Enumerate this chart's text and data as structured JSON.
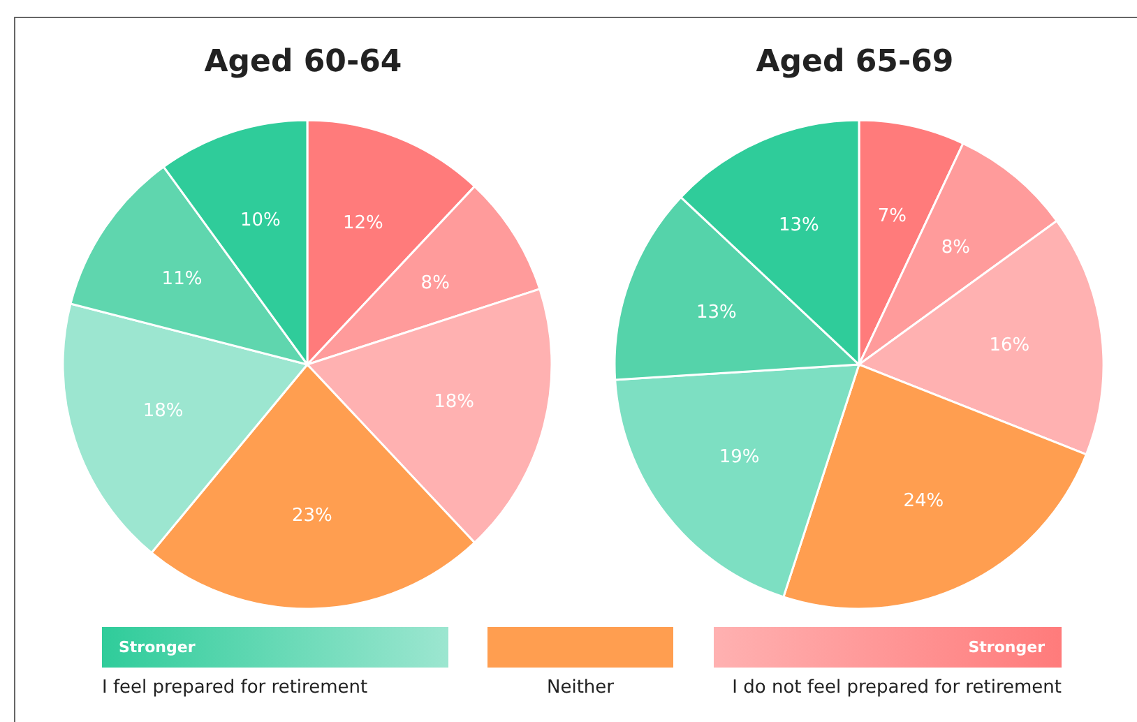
{
  "chart_data": [
    {
      "type": "pie",
      "title": "Aged 60-64",
      "categories": [
        null,
        null,
        null,
        null,
        null,
        null,
        null
      ],
      "values": [
        12,
        8,
        18,
        23,
        18,
        11,
        10
      ],
      "value_labels": [
        "12%",
        "8%",
        "18%",
        "23%",
        "18%",
        "11%",
        "10%"
      ],
      "colors": [
        "#ff7b7b",
        "#ff9b9b",
        "#ffb1b1",
        "#ff9e50",
        "#9ce6d0",
        "#5fd6ae",
        "#2fcc9a"
      ]
    },
    {
      "type": "pie",
      "title": "Aged 65-69",
      "categories": [
        null,
        null,
        null,
        null,
        null,
        null,
        null
      ],
      "values": [
        7,
        8,
        16,
        24,
        19,
        13,
        13
      ],
      "value_labels": [
        "7%",
        "8%",
        "16%",
        "24%",
        "19%",
        "13%",
        "13%"
      ],
      "colors": [
        "#ff7b7b",
        "#ff9b9b",
        "#ffb1b1",
        "#ff9e50",
        "#7ddfc2",
        "#55d3aa",
        "#2fcc9a"
      ]
    },
    {
      "type": "other",
      "annotations": [
        "Stronger",
        "I feel prepared for retirement",
        "Neither",
        "Stronger",
        "I do not feel prepared for retirement"
      ]
    }
  ]
}
